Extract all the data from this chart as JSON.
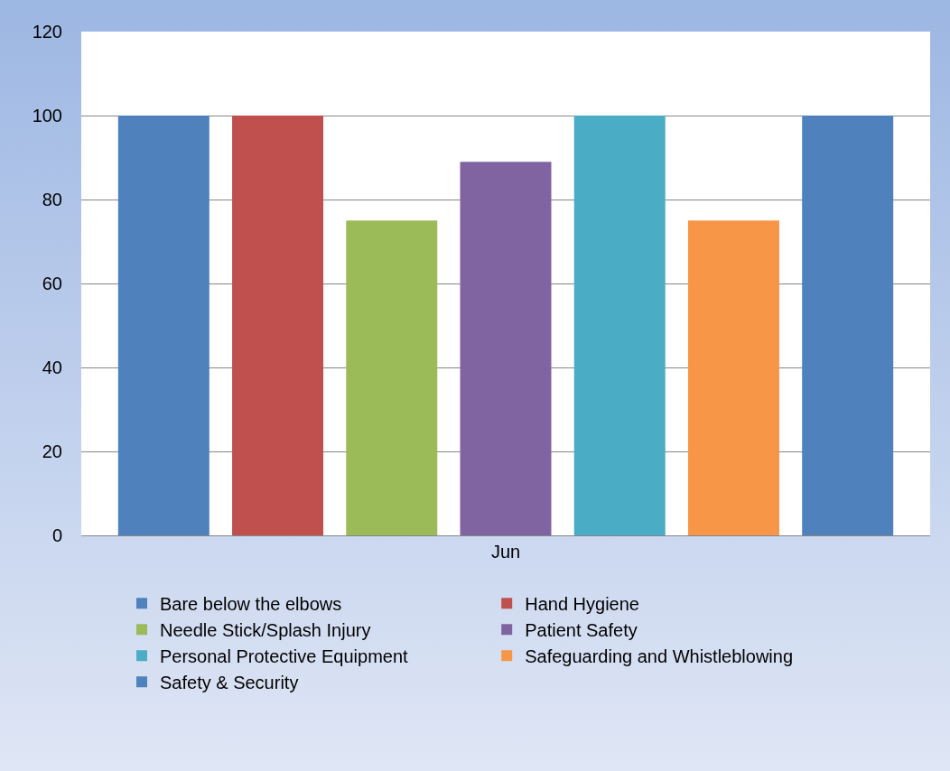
{
  "chart_data": {
    "type": "bar",
    "categories": [
      "Jun"
    ],
    "series": [
      {
        "name": "Bare below the elbows",
        "color": "#4f81bd",
        "values": [
          100
        ]
      },
      {
        "name": "Hand Hygiene",
        "color": "#c0504d",
        "values": [
          100
        ]
      },
      {
        "name": "Needle Stick/Splash Injury",
        "color": "#9bbb59",
        "values": [
          75
        ]
      },
      {
        "name": "Patient Safety",
        "color": "#8064a2",
        "values": [
          89
        ]
      },
      {
        "name": "Personal Protective Equipment",
        "color": "#4bacc6",
        "values": [
          100
        ]
      },
      {
        "name": "Safeguarding and Whistleblowing",
        "color": "#f79646",
        "values": [
          75
        ]
      },
      {
        "name": "Safety & Security",
        "color": "#4f81bd",
        "values": [
          100
        ]
      }
    ],
    "ylim": [
      0,
      120
    ],
    "yticks": [
      0,
      20,
      40,
      60,
      80,
      100,
      120
    ],
    "grid": "y",
    "legend": "bottom"
  }
}
